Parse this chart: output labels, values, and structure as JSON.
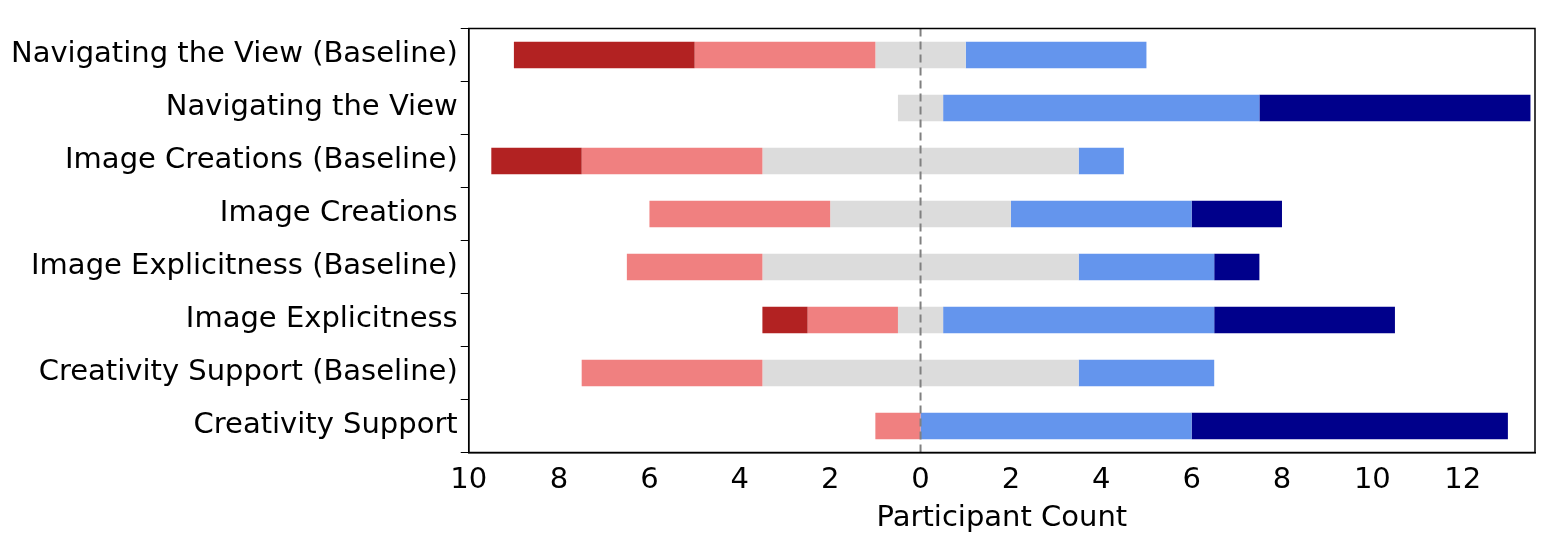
{
  "chart_data": {
    "type": "bar",
    "orientation": "horizontal",
    "xlabel": "Participant Count",
    "categories": [
      "Navigating the View (Baseline)",
      "Navigating the View",
      "Image Creations (Baseline)",
      "Image Creations",
      "Image Explicitness (Baseline)",
      "Image Explicitness",
      "Creativity Support (Baseline)",
      "Creativity Support"
    ],
    "series": [
      {
        "color": "#b22222",
        "values": [
          4,
          null,
          2,
          null,
          null,
          1,
          null,
          null
        ],
        "base": [
          -9,
          null,
          -9.5,
          null,
          null,
          -3.5,
          null,
          null
        ]
      },
      {
        "color": "#f08080",
        "values": [
          4,
          null,
          4,
          4,
          3,
          2,
          4,
          1
        ],
        "base": [
          -5,
          null,
          -7.5,
          -6,
          -6.5,
          -2.5,
          -7.5,
          -1
        ]
      },
      {
        "color": "#dcdcdc",
        "values": [
          2,
          1,
          7,
          4,
          7,
          1,
          7,
          null
        ],
        "base": [
          -1,
          -0.5,
          -3.5,
          -2,
          -3.5,
          -0.5,
          -3.5,
          null
        ]
      },
      {
        "color": "#6495ed",
        "values": [
          4,
          7,
          1,
          4,
          3,
          6,
          3,
          6
        ],
        "base": [
          1,
          0.5,
          3.5,
          2,
          3.5,
          0.5,
          3.5,
          0
        ]
      },
      {
        "color": "#00008b",
        "values": [
          null,
          6,
          null,
          2,
          1,
          4,
          null,
          7
        ],
        "base": [
          null,
          7.5,
          null,
          6,
          6.5,
          6.5,
          null,
          6
        ]
      }
    ],
    "xlim": [
      -10,
      13.6
    ],
    "xticks": [
      {
        "value": -10,
        "label": "10"
      },
      {
        "value": -8,
        "label": "8"
      },
      {
        "value": -6,
        "label": "6"
      },
      {
        "value": -4,
        "label": "4"
      },
      {
        "value": -2,
        "label": "2"
      },
      0,
      2,
      4,
      6,
      8,
      10,
      12
    ],
    "ref_lines": [
      {
        "axis": "x",
        "value": 0,
        "color": "#808080",
        "line_style": "dashed"
      }
    ],
    "grid": false,
    "legend": false
  }
}
